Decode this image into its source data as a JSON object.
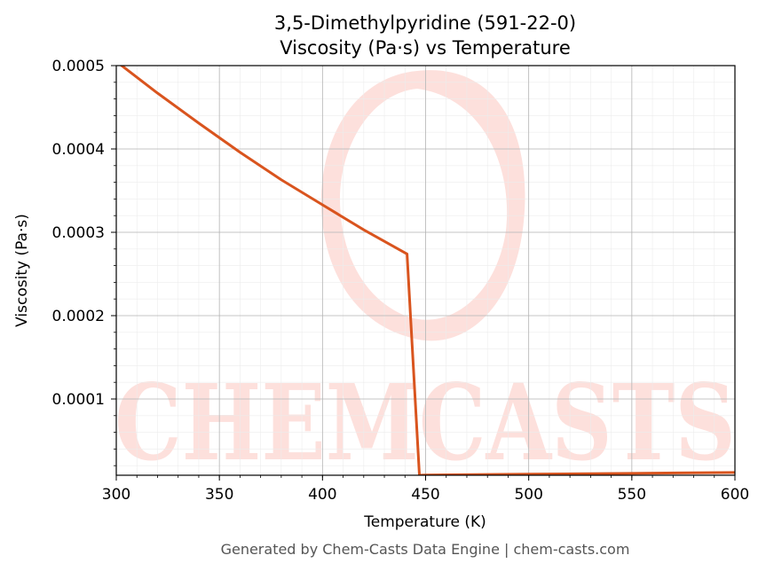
{
  "chart_data": {
    "type": "line",
    "title": "3,5-Dimethylpyridine (591-22-0)",
    "subtitle": "Viscosity (Pa·s) vs Temperature",
    "xlabel": "Temperature (K)",
    "ylabel": "Viscosity (Pa·s)",
    "xlim": [
      300,
      600
    ],
    "ylim": [
      8.5e-06,
      0.0005
    ],
    "x_ticks": [
      300,
      350,
      400,
      450,
      500,
      550,
      600
    ],
    "x_tick_labels": [
      "300",
      "350",
      "400",
      "450",
      "500",
      "550",
      "600"
    ],
    "y_ticks": [
      0.0001,
      0.0002,
      0.0003,
      0.0004,
      0.0005
    ],
    "y_tick_labels": [
      "0.0001",
      "0.0002",
      "0.0003",
      "0.0004",
      "0.0005"
    ],
    "grid": true,
    "series": [
      {
        "color": "#d9541e",
        "x": [
          300,
          320,
          340,
          360,
          380,
          400,
          420,
          441,
          447,
          450,
          500,
          550,
          600
        ],
        "y": [
          0.000505,
          0.000467,
          0.000431,
          0.000396,
          0.000363,
          0.000333,
          0.000303,
          0.000274,
          8.5e-06,
          8.7e-06,
          9.8e-06,
          1.08e-05,
          1.18e-05
        ]
      }
    ]
  },
  "watermark": "CHEMCASTS",
  "footer": "Generated by Chem-Casts Data Engine | chem-casts.com"
}
